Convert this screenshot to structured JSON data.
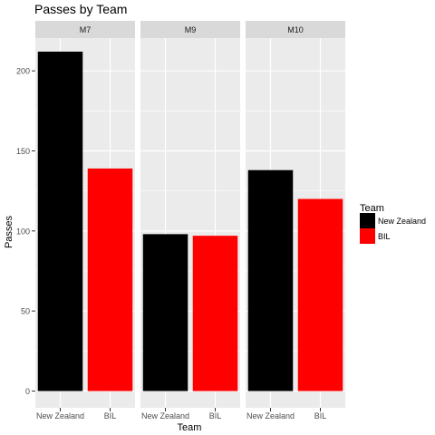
{
  "chart_data": {
    "type": "bar",
    "title": "Passes  by Team",
    "xlabel": "Team",
    "ylabel": "Passes",
    "ylim": [
      0,
      225
    ],
    "yticks": [
      0,
      50,
      100,
      150,
      200
    ],
    "grid": true,
    "categories": [
      "New Zealand",
      "BIL"
    ],
    "facets": [
      {
        "name": "M7",
        "values": [
          212,
          139
        ]
      },
      {
        "name": "M9",
        "values": [
          98,
          97
        ]
      },
      {
        "name": "M10",
        "values": [
          138,
          120
        ]
      }
    ],
    "legend": {
      "title": "Team",
      "position": "right",
      "entries": [
        {
          "label": "New Zealand",
          "color": "#000000"
        },
        {
          "label": "BIL",
          "color": "#ff0000"
        }
      ]
    },
    "colors": {
      "panel_bg": "#ebebeb",
      "strip_bg": "#d9d9d9",
      "grid": "#ffffff",
      "text": "#4d4d4d"
    }
  }
}
